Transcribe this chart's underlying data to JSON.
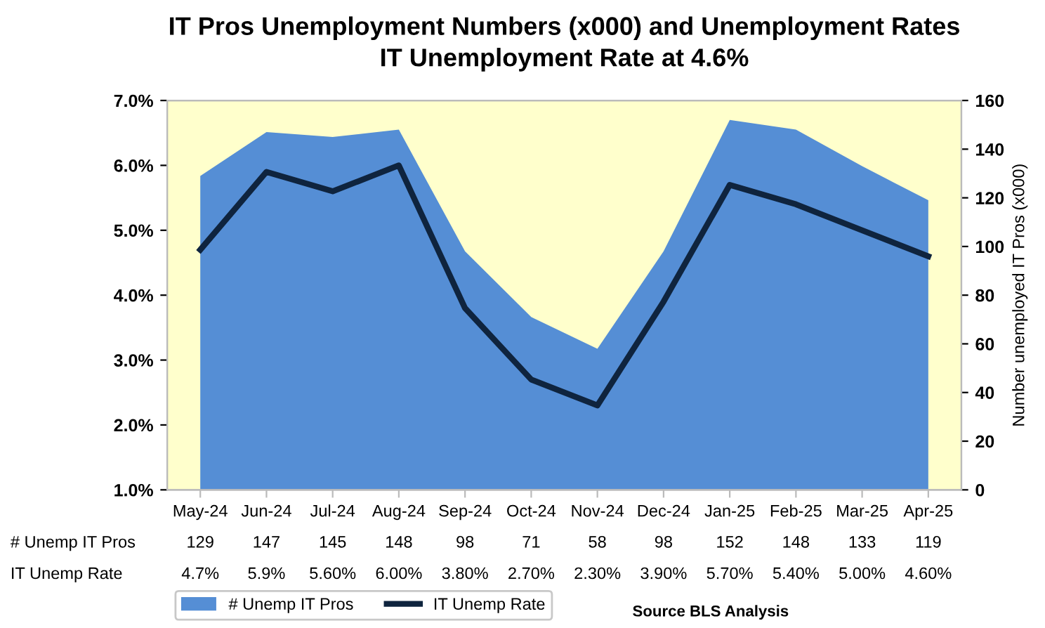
{
  "chart_data": {
    "type": "area",
    "title": "IT Pros Unemployment Numbers (x000) and Unemployment Rates",
    "subtitle": "IT Unemployment Rate at 4.6%",
    "y2label": "Number unemployed IT Pros (x000)",
    "categories": [
      "May-24",
      "Jun-24",
      "Jul-24",
      "Aug-24",
      "Sep-24",
      "Oct-24",
      "Nov-24",
      "Dec-24",
      "Jan-25",
      "Feb-25",
      "Mar-25",
      "Apr-25"
    ],
    "series": [
      {
        "name": "# Unemp IT Pros",
        "axis": "y2",
        "color": "#558ed5",
        "values": [
          129,
          147,
          145,
          148,
          98,
          71,
          58,
          98,
          152,
          148,
          133,
          119
        ],
        "value_labels": [
          "129",
          "147",
          "145",
          "148",
          "98",
          "71",
          "58",
          "98",
          "152",
          "148",
          "133",
          "119"
        ]
      },
      {
        "name": "IT Unemp Rate",
        "type": "line",
        "axis": "y",
        "color": "#0f243e",
        "values": [
          4.7,
          5.9,
          5.6,
          6.0,
          3.8,
          2.7,
          2.3,
          3.9,
          5.7,
          5.4,
          5.0,
          4.6
        ],
        "value_labels": [
          "4.7%",
          "5.9%",
          "5.60%",
          "6.00%",
          "3.80%",
          "2.70%",
          "2.30%",
          "3.90%",
          "5.70%",
          "5.40%",
          "5.00%",
          "4.60%"
        ]
      }
    ],
    "ylim": [
      1.0,
      7.0
    ],
    "yticks": [
      {
        "value": 1.0,
        "label": "1.0%"
      },
      {
        "value": 2.0,
        "label": "2.0%"
      },
      {
        "value": 3.0,
        "label": "3.0%"
      },
      {
        "value": 4.0,
        "label": "4.0%"
      },
      {
        "value": 5.0,
        "label": "5.0%"
      },
      {
        "value": 6.0,
        "label": "6.0%"
      },
      {
        "value": 7.0,
        "label": "7.0%"
      }
    ],
    "y2lim": [
      0,
      160
    ],
    "y2ticks": [
      0,
      20,
      40,
      60,
      80,
      100,
      120,
      140,
      160
    ],
    "bands": [
      {
        "axis": "y",
        "from": 1.0,
        "to": 7.0,
        "color": "#ffffcc"
      }
    ],
    "grid": false,
    "legend": "bottom",
    "marker": "none",
    "line_style": "solid",
    "annotations": [
      "Source BLS Analysis"
    ]
  }
}
